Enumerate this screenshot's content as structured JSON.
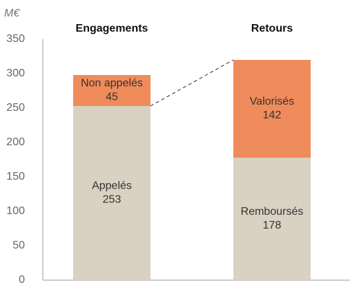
{
  "chart_data": {
    "type": "bar",
    "stacked": true,
    "ylabel": "M€",
    "categories": [
      "Engagements",
      "Retours"
    ],
    "series": [
      {
        "labels": [
          "Appelés",
          "Remboursés"
        ],
        "color": "#d9d1c2",
        "values": [
          253,
          178
        ]
      },
      {
        "labels": [
          "Non appelés",
          "Valorisés"
        ],
        "color": "#f08b5b",
        "values": [
          45,
          142
        ]
      }
    ],
    "ylim": [
      0,
      350
    ],
    "yticks": [
      0,
      50,
      100,
      150,
      200,
      250,
      300,
      350
    ],
    "grid": false
  }
}
